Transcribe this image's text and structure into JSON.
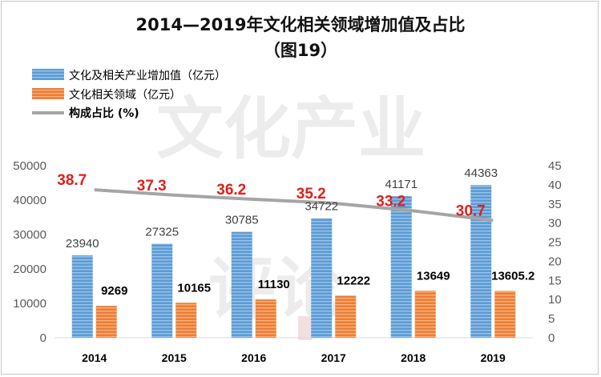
{
  "chart_data": {
    "type": "bar+line",
    "title_line1": "2014—2019年文化相关领域增加值及占比",
    "title_line2": "（图19）",
    "categories": [
      "2014",
      "2015",
      "2016",
      "2017",
      "2018",
      "2019"
    ],
    "series": [
      {
        "name": "文化及相关产业增加值（亿元）",
        "type": "bar",
        "axis": "left",
        "color": "#5b9bd5",
        "values": [
          23940,
          27325,
          30785,
          34722,
          41171,
          44363
        ],
        "labels": [
          "23940",
          "27325",
          "30785",
          "34722",
          "41171",
          "44363"
        ]
      },
      {
        "name": "文化相关领域（亿元）",
        "type": "bar",
        "axis": "left",
        "color": "#ed7d31",
        "values": [
          9269,
          10165,
          11130,
          12222,
          13649,
          13605.2
        ],
        "labels": [
          "9269",
          "10165",
          "11130",
          "12222",
          "13649",
          "13605.2"
        ]
      },
      {
        "name": "构成占比 (%)",
        "type": "line",
        "axis": "right",
        "color": "#a5a5a5",
        "values": [
          38.7,
          37.3,
          36.2,
          35.2,
          33.2,
          30.7
        ],
        "labels": [
          "38.7",
          "37.3",
          "36.2",
          "35.2",
          "33.2",
          "30.7"
        ],
        "label_color": "#e0201b"
      }
    ],
    "y_left": {
      "min": 0,
      "max": 50000,
      "step": 10000,
      "ticks": [
        "0",
        "10000",
        "20000",
        "30000",
        "40000",
        "50000"
      ]
    },
    "y_right": {
      "min": 0,
      "max": 45,
      "step": 5,
      "ticks": [
        "0",
        "5",
        "10",
        "15",
        "20",
        "25",
        "30",
        "35",
        "40",
        "45"
      ]
    },
    "legend_position": "top-left",
    "grid": false
  },
  "watermark": {
    "line1": "文化产业",
    "line2": "评论"
  }
}
